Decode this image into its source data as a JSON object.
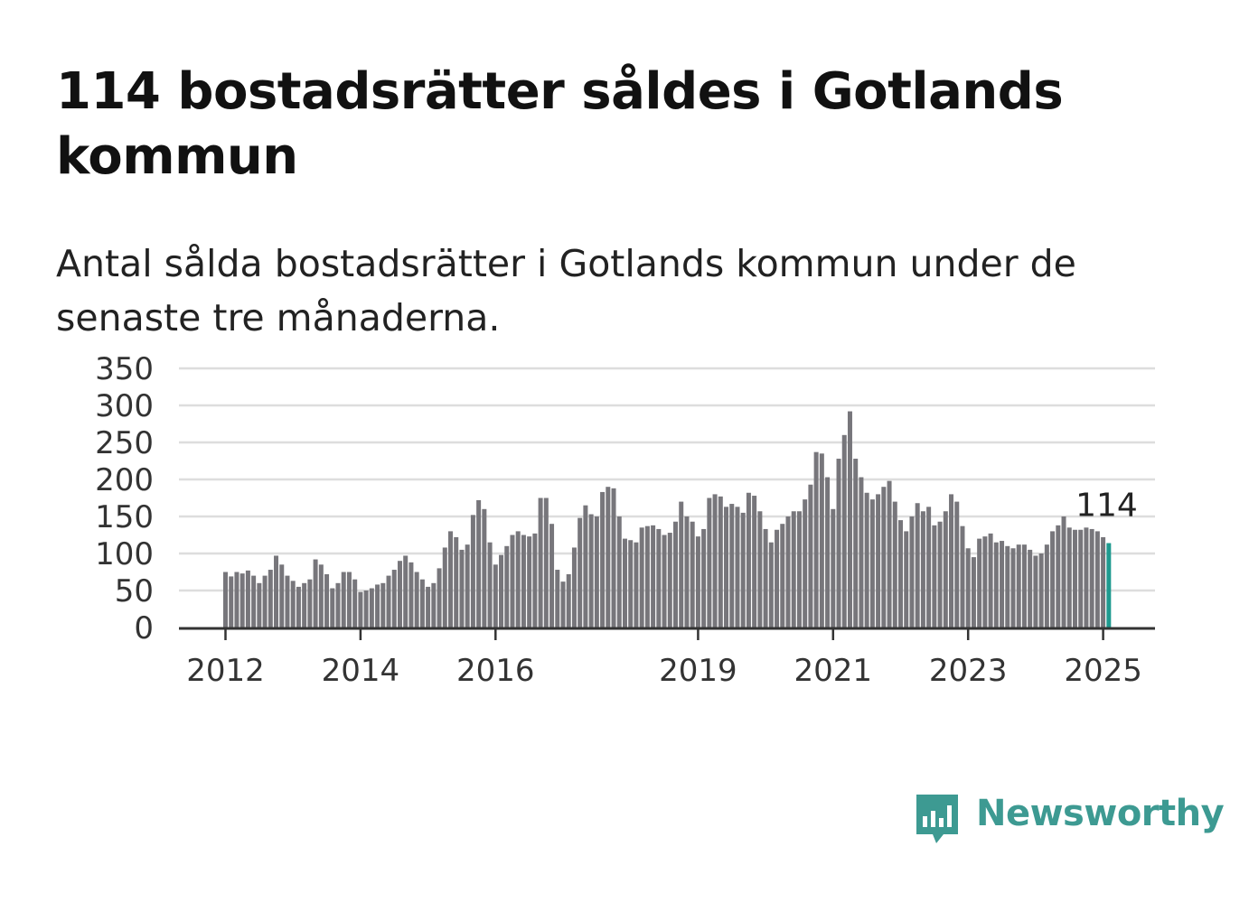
{
  "title": "114 bostadsrätter såldes i Gotlands kommun",
  "subtitle": "Antal sålda bostadsrätter i Gotlands kommun under de senaste tre månaderna.",
  "brand": {
    "name": "Newsworthy",
    "color": "#3d9a92"
  },
  "colors": {
    "bar": "#77767b",
    "highlight": "#1f9a8f",
    "grid": "#dddddd",
    "axis": "#333333"
  },
  "chart_data": {
    "type": "bar",
    "title": "",
    "xlabel": "",
    "ylabel": "",
    "ylim": [
      0,
      350
    ],
    "yticks": [
      0,
      50,
      100,
      150,
      200,
      250,
      300,
      350
    ],
    "xticks": [
      {
        "label": "2012",
        "index": 0
      },
      {
        "label": "2014",
        "index": 24
      },
      {
        "label": "2016",
        "index": 48
      },
      {
        "label": "2019",
        "index": 84
      },
      {
        "label": "2021",
        "index": 108
      },
      {
        "label": "2023",
        "index": 132
      },
      {
        "label": "2025",
        "index": 156
      }
    ],
    "grid": true,
    "start": "2012-01",
    "interval": "month",
    "highlight_last": true,
    "annotation": "114",
    "values": [
      75,
      69,
      75,
      73,
      77,
      70,
      60,
      70,
      78,
      97,
      85,
      70,
      63,
      55,
      60,
      65,
      92,
      85,
      72,
      53,
      60,
      75,
      75,
      65,
      48,
      50,
      53,
      58,
      60,
      70,
      78,
      90,
      97,
      88,
      75,
      65,
      55,
      60,
      80,
      108,
      130,
      122,
      105,
      112,
      152,
      172,
      160,
      115,
      85,
      98,
      110,
      125,
      130,
      125,
      123,
      127,
      175,
      175,
      140,
      78,
      62,
      72,
      108,
      148,
      165,
      153,
      150,
      183,
      190,
      188,
      150,
      120,
      118,
      115,
      135,
      137,
      138,
      133,
      125,
      128,
      143,
      170,
      150,
      143,
      123,
      133,
      175,
      180,
      177,
      163,
      167,
      163,
      155,
      182,
      178,
      157,
      133,
      115,
      132,
      140,
      150,
      157,
      157,
      173,
      193,
      237,
      235,
      203,
      160,
      228,
      260,
      292,
      228,
      203,
      182,
      173,
      180,
      190,
      198,
      170,
      145,
      130,
      150,
      168,
      157,
      163,
      138,
      143,
      157,
      180,
      170,
      137,
      107,
      95,
      120,
      123,
      127,
      115,
      117,
      110,
      107,
      112,
      112,
      105,
      97,
      100,
      112,
      130,
      138,
      150,
      135,
      132,
      132,
      135,
      133,
      130,
      122,
      114
    ]
  }
}
